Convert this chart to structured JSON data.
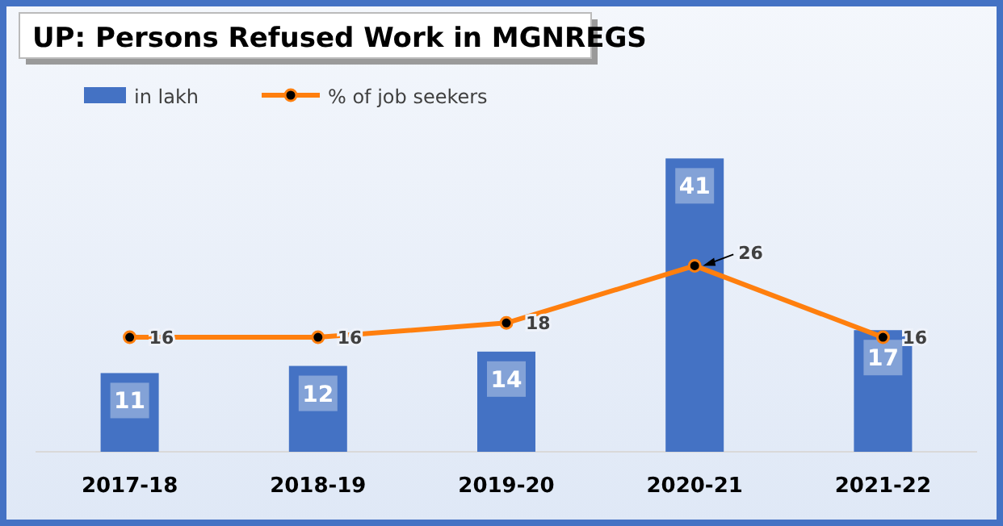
{
  "chart_data": {
    "type": "bar",
    "title": "UP: Persons Refused Work in MGNREGS",
    "categories": [
      "2017-18",
      "2018-19",
      "2019-20",
      "2020-21",
      "2021-22"
    ],
    "series": [
      {
        "name": "in lakh",
        "color": "#4472c4",
        "values": [
          11,
          12,
          14,
          41,
          17
        ]
      },
      {
        "name": "% of job seekers",
        "type": "line",
        "color": "#ff7f0e",
        "values": [
          16,
          16,
          18,
          26,
          16
        ]
      }
    ],
    "data_labels": true,
    "marker": "circle",
    "legend": "top left",
    "grid": false
  }
}
